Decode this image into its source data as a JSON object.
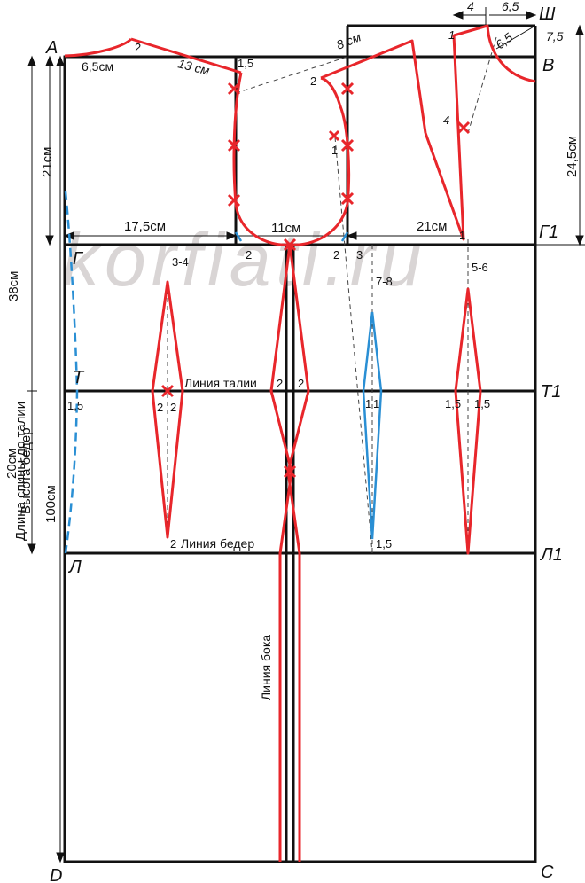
{
  "watermark": "korfiati.ru",
  "points": {
    "A": "A",
    "V": "В",
    "Sh": "Ш",
    "G": "Г",
    "G1": "Г1",
    "T": "Т",
    "T1": "Т1",
    "L": "Л",
    "L1": "Л1",
    "D": "D",
    "C": "С"
  },
  "lines": {
    "waist": "Линия талии",
    "hips": "Линия  бедер",
    "side": "Линия бока"
  },
  "dims": {
    "back_length": "Длина спины до талии",
    "back_length_value": "38см",
    "hip_height": "Высота бедер",
    "hip_height_value": "20см",
    "total_length": "100см",
    "armhole_depth": "21см",
    "back_width": "17,5см",
    "armhole_width": "11см",
    "chest_width": "21см",
    "front_depth": "24,5см",
    "neck_back": "6,5см",
    "shoulder_back": "13 см",
    "front_shoulder": "8 см",
    "top_4": "4",
    "top_65": "6,5",
    "side_75": "7,5",
    "neck_65": "6,5"
  },
  "marks": {
    "m2_neck": "2",
    "m15_arm": "1,5",
    "m2_arm_back": "2",
    "m1_arm": "1",
    "m1_front": "1",
    "m4_front": "4",
    "m1_g1": "1",
    "m2_corner_left": "2",
    "m2_corner_right": "2",
    "m3": "3",
    "dart_34": "3-4",
    "dart_78": "7-8",
    "dart_56": "5-6",
    "w_15_back": "1,5",
    "w_2a": "2",
    "w_2b": "2",
    "w_side_2a": "2",
    "w_side_2b": "2",
    "w_11a": "1",
    "w_11b": "1",
    "w_15a": "1,5",
    "w_15b": "1,5",
    "h_2": "2",
    "h_15": "1,5"
  },
  "colors": {
    "frame": "#111111",
    "pattern": "#e8262b",
    "aux": "#2a8fd4",
    "watermark": "#d9d5d5"
  }
}
